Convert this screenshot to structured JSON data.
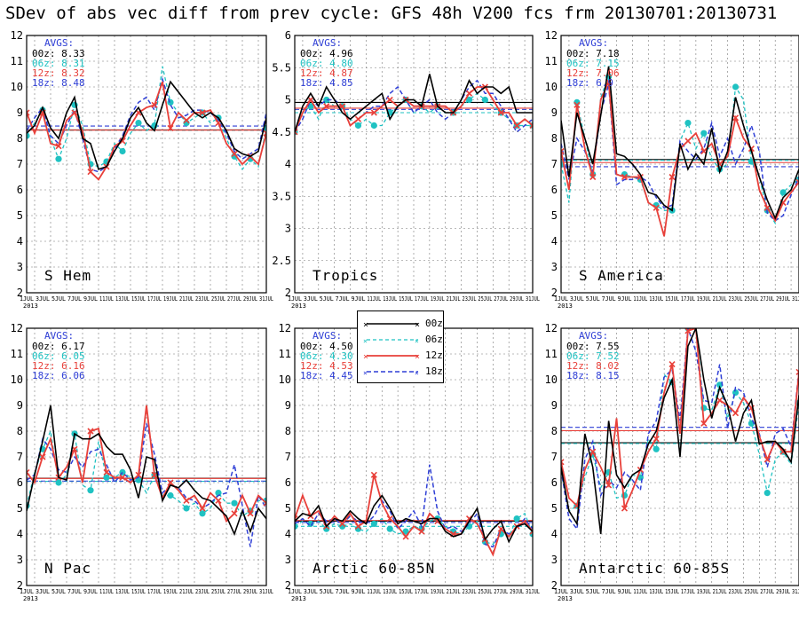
{
  "title": "SDev of abs vec diff from prev cycle: GFS 48h V200 fcs frm 20130701:20130731",
  "colors": {
    "00z": "#000000",
    "06z": "#1fc2c2",
    "12z": "#e8403a",
    "18z": "#2f3fd6"
  },
  "x_ticks": [
    "1JUL",
    "3JUL",
    "5JUL",
    "7JUL",
    "9JUL",
    "11JUL",
    "13JUL",
    "15JUL",
    "17JUL",
    "19JUL",
    "21JUL",
    "23JUL",
    "25JUL",
    "27JUL",
    "29JUL",
    "31JUL"
  ],
  "x_year": "2013",
  "legend": [
    {
      "key": "00z",
      "label": "00z"
    },
    {
      "key": "06z",
      "label": "06z"
    },
    {
      "key": "12z",
      "label": "12z"
    },
    {
      "key": "18z",
      "label": "18z"
    }
  ],
  "chart_data": [
    {
      "type": "line",
      "name": "S Hem",
      "ylim": [
        2,
        12
      ],
      "yticks": [
        "2",
        "3",
        "4",
        "5",
        "6",
        "7",
        "8",
        "9",
        "10",
        "11",
        "12"
      ],
      "avgs_title": "AVGS:",
      "avgs": [
        {
          "key": "00z",
          "label": "00z: 8.33",
          "value": 8.33
        },
        {
          "key": "06z",
          "label": "06z: 8.31",
          "value": 8.31
        },
        {
          "key": "12z",
          "label": "12z: 8.32",
          "value": 8.32
        },
        {
          "key": "18z",
          "label": "18z: 8.48",
          "value": 8.48
        }
      ],
      "series": [
        {
          "key": "00z",
          "values": [
            8.2,
            8.5,
            9.2,
            8.4,
            8.0,
            9.0,
            9.6,
            8.0,
            7.8,
            6.8,
            6.9,
            7.5,
            8.0,
            8.8,
            9.2,
            8.6,
            8.3,
            9.3,
            10.2,
            9.8,
            9.4,
            9.0,
            8.8,
            9.0,
            8.8,
            8.3,
            7.6,
            7.4,
            7.3,
            7.5,
            8.8
          ]
        },
        {
          "key": "06z",
          "values": [
            8.1,
            8.6,
            9.1,
            8.0,
            7.2,
            8.0,
            9.3,
            8.5,
            7.0,
            6.9,
            7.1,
            7.8,
            7.5,
            8.2,
            8.6,
            8.3,
            8.5,
            10.8,
            9.4,
            9.0,
            8.6,
            8.8,
            9.0,
            8.6,
            8.8,
            8.0,
            7.3,
            6.8,
            7.2,
            6.9,
            8.4
          ]
        },
        {
          "key": "12z",
          "values": [
            9.0,
            8.2,
            9.0,
            7.8,
            7.7,
            8.7,
            9.0,
            8.3,
            6.7,
            6.4,
            6.9,
            7.7,
            7.9,
            8.5,
            9.0,
            9.2,
            9.3,
            10.2,
            8.4,
            9.0,
            8.7,
            9.0,
            9.0,
            9.1,
            8.6,
            7.8,
            7.4,
            7.0,
            7.3,
            7.0,
            8.2
          ]
        },
        {
          "key": "18z",
          "values": [
            8.3,
            8.8,
            9.2,
            8.1,
            7.8,
            8.5,
            9.1,
            8.0,
            6.8,
            6.7,
            6.9,
            7.6,
            8.1,
            8.9,
            9.4,
            9.6,
            9.1,
            10.3,
            9.3,
            8.8,
            8.9,
            9.1,
            9.1,
            9.0,
            8.7,
            8.2,
            7.5,
            7.2,
            7.4,
            7.6,
            9.0
          ]
        }
      ]
    },
    {
      "type": "line",
      "name": "Tropics",
      "ylim": [
        2,
        6
      ],
      "yticks": [
        "2",
        "2.5",
        "3",
        "3.5",
        "4",
        "4.5",
        "5",
        "5.5",
        "6"
      ],
      "avgs_title": "AVGS:",
      "avgs": [
        {
          "key": "00z",
          "label": "00z: 4.96",
          "value": 4.96
        },
        {
          "key": "06z",
          "label": "06z: 4.80",
          "value": 4.8
        },
        {
          "key": "12z",
          "label": "12z: 4.87",
          "value": 4.87
        },
        {
          "key": "18z",
          "label": "18z: 4.85",
          "value": 4.85
        }
      ],
      "series": [
        {
          "key": "00z",
          "values": [
            4.5,
            4.9,
            5.1,
            4.9,
            5.2,
            5.0,
            4.8,
            4.7,
            4.8,
            4.9,
            5.0,
            5.1,
            4.7,
            4.9,
            5.0,
            5.0,
            4.9,
            5.4,
            4.9,
            4.8,
            4.8,
            5.0,
            5.3,
            5.1,
            5.2,
            5.2,
            5.1,
            5.2,
            4.8,
            4.8,
            4.8
          ]
        },
        {
          "key": "06z",
          "values": [
            4.5,
            4.8,
            4.9,
            4.7,
            5.0,
            4.9,
            4.9,
            4.7,
            4.6,
            4.7,
            4.6,
            4.6,
            4.8,
            4.9,
            5.0,
            4.8,
            4.9,
            4.8,
            4.9,
            4.8,
            4.8,
            4.9,
            5.0,
            5.1,
            5.0,
            4.9,
            4.8,
            4.7,
            4.6,
            4.6,
            4.6
          ]
        },
        {
          "key": "12z",
          "values": [
            4.5,
            4.8,
            5.0,
            4.8,
            4.9,
            4.9,
            4.9,
            4.6,
            4.7,
            4.8,
            4.8,
            4.9,
            5.0,
            4.9,
            5.0,
            4.9,
            4.9,
            4.9,
            4.9,
            4.9,
            4.8,
            4.9,
            5.1,
            5.2,
            5.2,
            5.0,
            4.8,
            4.8,
            4.6,
            4.7,
            4.6
          ]
        },
        {
          "key": "18z",
          "values": [
            4.5,
            4.7,
            5.0,
            4.9,
            5.0,
            5.0,
            4.9,
            4.6,
            4.7,
            4.8,
            4.9,
            4.9,
            5.1,
            5.2,
            5.0,
            4.8,
            4.9,
            5.0,
            4.8,
            4.7,
            4.8,
            5.0,
            5.2,
            5.3,
            5.1,
            5.1,
            4.9,
            4.7,
            4.5,
            4.6,
            4.7
          ]
        }
      ]
    },
    {
      "type": "line",
      "name": "S America",
      "ylim": [
        2,
        12
      ],
      "yticks": [
        "2",
        "3",
        "4",
        "5",
        "6",
        "7",
        "8",
        "9",
        "10",
        "11",
        "12"
      ],
      "avgs_title": "AVGS:",
      "avgs": [
        {
          "key": "00z",
          "label": "00z: 7.18",
          "value": 7.18
        },
        {
          "key": "06z",
          "label": "06z: 7.15",
          "value": 7.15
        },
        {
          "key": "12z",
          "label": "12z: 7.06",
          "value": 7.06
        },
        {
          "key": "18z",
          "label": "18z: 6.9",
          "value": 6.9
        }
      ],
      "series": [
        {
          "key": "00z",
          "values": [
            8.7,
            6.5,
            9.0,
            8.0,
            7.0,
            8.9,
            10.8,
            7.4,
            7.3,
            7.0,
            6.6,
            5.9,
            5.8,
            5.4,
            5.2,
            7.8,
            6.8,
            7.4,
            7.0,
            8.4,
            6.7,
            7.5,
            9.6,
            8.5,
            7.5,
            6.5,
            5.6,
            4.9,
            5.7,
            6.0,
            6.8
          ]
        },
        {
          "key": "06z",
          "values": [
            7.0,
            5.5,
            9.4,
            8.0,
            6.6,
            9.6,
            10.4,
            6.6,
            6.6,
            6.5,
            6.4,
            5.5,
            5.4,
            5.2,
            5.2,
            7.9,
            8.6,
            7.6,
            8.2,
            7.2,
            6.8,
            7.0,
            10.0,
            9.5,
            7.1,
            6.5,
            5.2,
            4.7,
            5.9,
            6.2,
            6.4
          ]
        },
        {
          "key": "12z",
          "values": [
            7.5,
            6.0,
            9.3,
            7.6,
            6.5,
            9.5,
            10.2,
            6.6,
            6.5,
            6.5,
            6.5,
            5.5,
            5.3,
            4.2,
            6.5,
            7.6,
            7.9,
            8.2,
            7.5,
            7.8,
            7.0,
            7.3,
            8.8,
            8.0,
            7.6,
            6.0,
            5.3,
            4.8,
            5.5,
            5.9,
            6.3
          ]
        },
        {
          "key": "18z",
          "values": [
            7.8,
            6.4,
            8.0,
            7.5,
            6.7,
            9.0,
            10.1,
            6.2,
            6.4,
            6.4,
            6.5,
            6.3,
            5.7,
            5.3,
            5.4,
            7.9,
            7.5,
            7.2,
            7.6,
            8.6,
            7.3,
            8.0,
            7.0,
            7.6,
            8.5,
            7.5,
            5.1,
            4.8,
            5.0,
            5.8,
            6.5
          ]
        }
      ]
    },
    {
      "type": "line",
      "name": "N Pac",
      "ylim": [
        2,
        12
      ],
      "yticks": [
        "2",
        "3",
        "4",
        "5",
        "6",
        "7",
        "8",
        "9",
        "10",
        "11",
        "12"
      ],
      "avgs_title": "AVGS:",
      "avgs": [
        {
          "key": "00z",
          "label": "00z: 6.17",
          "value": 6.17
        },
        {
          "key": "06z",
          "label": "06z: 6.05",
          "value": 6.05
        },
        {
          "key": "12z",
          "label": "12z: 6.16",
          "value": 6.16
        },
        {
          "key": "18z",
          "label": "18z: 6.06",
          "value": 6.06
        }
      ],
      "series": [
        {
          "key": "00z",
          "values": [
            4.9,
            6.3,
            7.6,
            9.0,
            6.2,
            6.1,
            7.9,
            7.7,
            7.7,
            7.9,
            7.4,
            7.1,
            7.1,
            6.5,
            5.4,
            7.0,
            6.9,
            5.3,
            5.9,
            5.8,
            6.1,
            5.7,
            5.4,
            5.3,
            5.0,
            4.7,
            4.0,
            4.9,
            4.1,
            5.0,
            4.6
          ]
        },
        {
          "key": "06z",
          "values": [
            5.1,
            6.4,
            7.3,
            8.0,
            6.0,
            6.3,
            7.9,
            5.9,
            5.7,
            7.6,
            6.2,
            6.2,
            6.4,
            6.2,
            6.1,
            5.6,
            6.3,
            5.5,
            5.5,
            5.3,
            5.0,
            5.2,
            4.8,
            5.0,
            5.6,
            5.2,
            5.2,
            4.7,
            4.9,
            5.3,
            5.3
          ]
        },
        {
          "key": "12z",
          "values": [
            6.4,
            6.0,
            7.0,
            7.7,
            6.2,
            6.6,
            7.3,
            6.0,
            8.0,
            8.1,
            6.4,
            6.2,
            6.2,
            6.0,
            6.3,
            9.0,
            6.3,
            5.4,
            6.0,
            5.7,
            5.3,
            5.5,
            5.0,
            5.6,
            5.3,
            4.5,
            4.8,
            5.5,
            4.8,
            5.5,
            5.2
          ]
        },
        {
          "key": "18z",
          "values": [
            6.1,
            6.3,
            7.7,
            7.3,
            6.5,
            6.4,
            7.0,
            6.6,
            7.2,
            7.3,
            6.7,
            6.0,
            6.4,
            6.1,
            6.2,
            8.3,
            7.1,
            5.6,
            5.9,
            5.8,
            5.4,
            5.3,
            5.0,
            5.2,
            5.5,
            5.6,
            6.7,
            5.1,
            3.5,
            5.5,
            5.0
          ]
        }
      ]
    },
    {
      "type": "line",
      "name": "Arctic 60-85N",
      "ylim": [
        2,
        12
      ],
      "yticks": [
        "2",
        "3",
        "4",
        "5",
        "6",
        "7",
        "8",
        "9",
        "10",
        "11",
        "12"
      ],
      "avgs_title": "AVGS:",
      "avgs": [
        {
          "key": "00z",
          "label": "00z: 4.50",
          "value": 4.5
        },
        {
          "key": "06z",
          "label": "06z: 4.30",
          "value": 4.3
        },
        {
          "key": "12z",
          "label": "12z: 4.53",
          "value": 4.53
        },
        {
          "key": "18z",
          "label": "18z: 4.45",
          "value": 4.45
        }
      ],
      "series": [
        {
          "key": "00z",
          "values": [
            4.5,
            4.8,
            4.7,
            5.1,
            4.3,
            4.6,
            4.5,
            4.9,
            4.6,
            4.4,
            5.1,
            5.5,
            5.0,
            4.4,
            4.6,
            4.5,
            4.4,
            4.6,
            4.6,
            4.1,
            3.9,
            4.0,
            4.5,
            5.0,
            3.8,
            4.2,
            4.5,
            3.7,
            4.3,
            4.4,
            4.1
          ]
        },
        {
          "key": "06z",
          "values": [
            4.3,
            4.5,
            4.4,
            4.5,
            4.2,
            4.4,
            4.3,
            4.4,
            4.2,
            4.1,
            4.4,
            4.6,
            4.2,
            4.0,
            4.1,
            4.3,
            4.2,
            4.5,
            4.6,
            4.3,
            4.1,
            4.0,
            4.3,
            4.5,
            3.7,
            3.6,
            4.0,
            3.9,
            4.6,
            4.8,
            4.0
          ]
        },
        {
          "key": "12z",
          "values": [
            4.6,
            5.5,
            4.7,
            4.9,
            4.3,
            4.7,
            4.4,
            4.8,
            4.3,
            4.5,
            6.3,
            5.2,
            4.6,
            4.3,
            3.9,
            4.3,
            4.1,
            4.8,
            4.5,
            4.2,
            4.0,
            4.0,
            4.6,
            4.4,
            3.8,
            3.2,
            4.2,
            3.9,
            4.3,
            4.5,
            4.1
          ]
        },
        {
          "key": "18z",
          "values": [
            4.4,
            4.6,
            4.3,
            4.8,
            4.5,
            4.6,
            4.4,
            4.7,
            4.5,
            4.4,
            4.7,
            5.3,
            4.9,
            4.2,
            4.5,
            4.9,
            4.3,
            6.7,
            4.9,
            4.2,
            4.3,
            4.1,
            4.4,
            4.8,
            3.6,
            3.5,
            4.2,
            4.0,
            4.2,
            4.6,
            4.2
          ]
        }
      ]
    },
    {
      "type": "line",
      "name": "Antarctic 60-85S",
      "ylim": [
        2,
        12
      ],
      "yticks": [
        "2",
        "3",
        "4",
        "5",
        "6",
        "7",
        "8",
        "9",
        "10",
        "11",
        "12"
      ],
      "avgs_title": "AVGS:",
      "avgs": [
        {
          "key": "00z",
          "label": "00z: 7.55",
          "value": 7.55
        },
        {
          "key": "06z",
          "label": "06z: 7.52",
          "value": 7.52
        },
        {
          "key": "12z",
          "label": "12z: 8.02",
          "value": 8.02
        },
        {
          "key": "18z",
          "label": "18z: 8.15",
          "value": 8.15
        }
      ],
      "series": [
        {
          "key": "00z",
          "values": [
            6.6,
            4.9,
            4.4,
            7.9,
            6.6,
            4.0,
            8.4,
            6.3,
            5.8,
            6.3,
            6.5,
            7.5,
            8.0,
            9.3,
            10.0,
            7.0,
            11.3,
            12.0,
            10.0,
            8.5,
            9.7,
            9.0,
            7.6,
            8.7,
            9.2,
            7.5,
            7.6,
            7.6,
            7.3,
            6.8,
            9.4
          ]
        },
        {
          "key": "06z",
          "values": [
            6.4,
            4.9,
            5.1,
            6.2,
            7.1,
            5.8,
            6.4,
            5.4,
            5.5,
            6.3,
            6.2,
            7.7,
            7.3,
            10.2,
            9.9,
            8.0,
            12.0,
            12.0,
            8.9,
            8.8,
            9.8,
            8.5,
            9.5,
            9.1,
            8.3,
            7.1,
            5.6,
            6.9,
            7.2,
            6.7,
            9.1
          ]
        },
        {
          "key": "12z",
          "values": [
            6.8,
            5.4,
            5.1,
            6.5,
            7.2,
            6.6,
            5.9,
            8.5,
            5.0,
            5.7,
            6.5,
            7.2,
            7.7,
            9.5,
            10.6,
            7.9,
            11.9,
            12.0,
            8.3,
            8.7,
            9.2,
            9.0,
            8.7,
            9.3,
            8.9,
            7.8,
            6.9,
            7.6,
            7.2,
            7.2,
            10.3
          ]
        },
        {
          "key": "18z",
          "values": [
            6.5,
            4.6,
            4.2,
            6.9,
            7.6,
            5.5,
            6.1,
            5.8,
            6.4,
            6.1,
            5.7,
            7.9,
            8.4,
            10.1,
            10.4,
            8.4,
            12.0,
            11.1,
            9.2,
            9.1,
            10.6,
            8.1,
            9.7,
            9.5,
            8.5,
            7.9,
            6.6,
            7.9,
            8.1,
            7.4,
            10.4
          ]
        }
      ]
    }
  ]
}
